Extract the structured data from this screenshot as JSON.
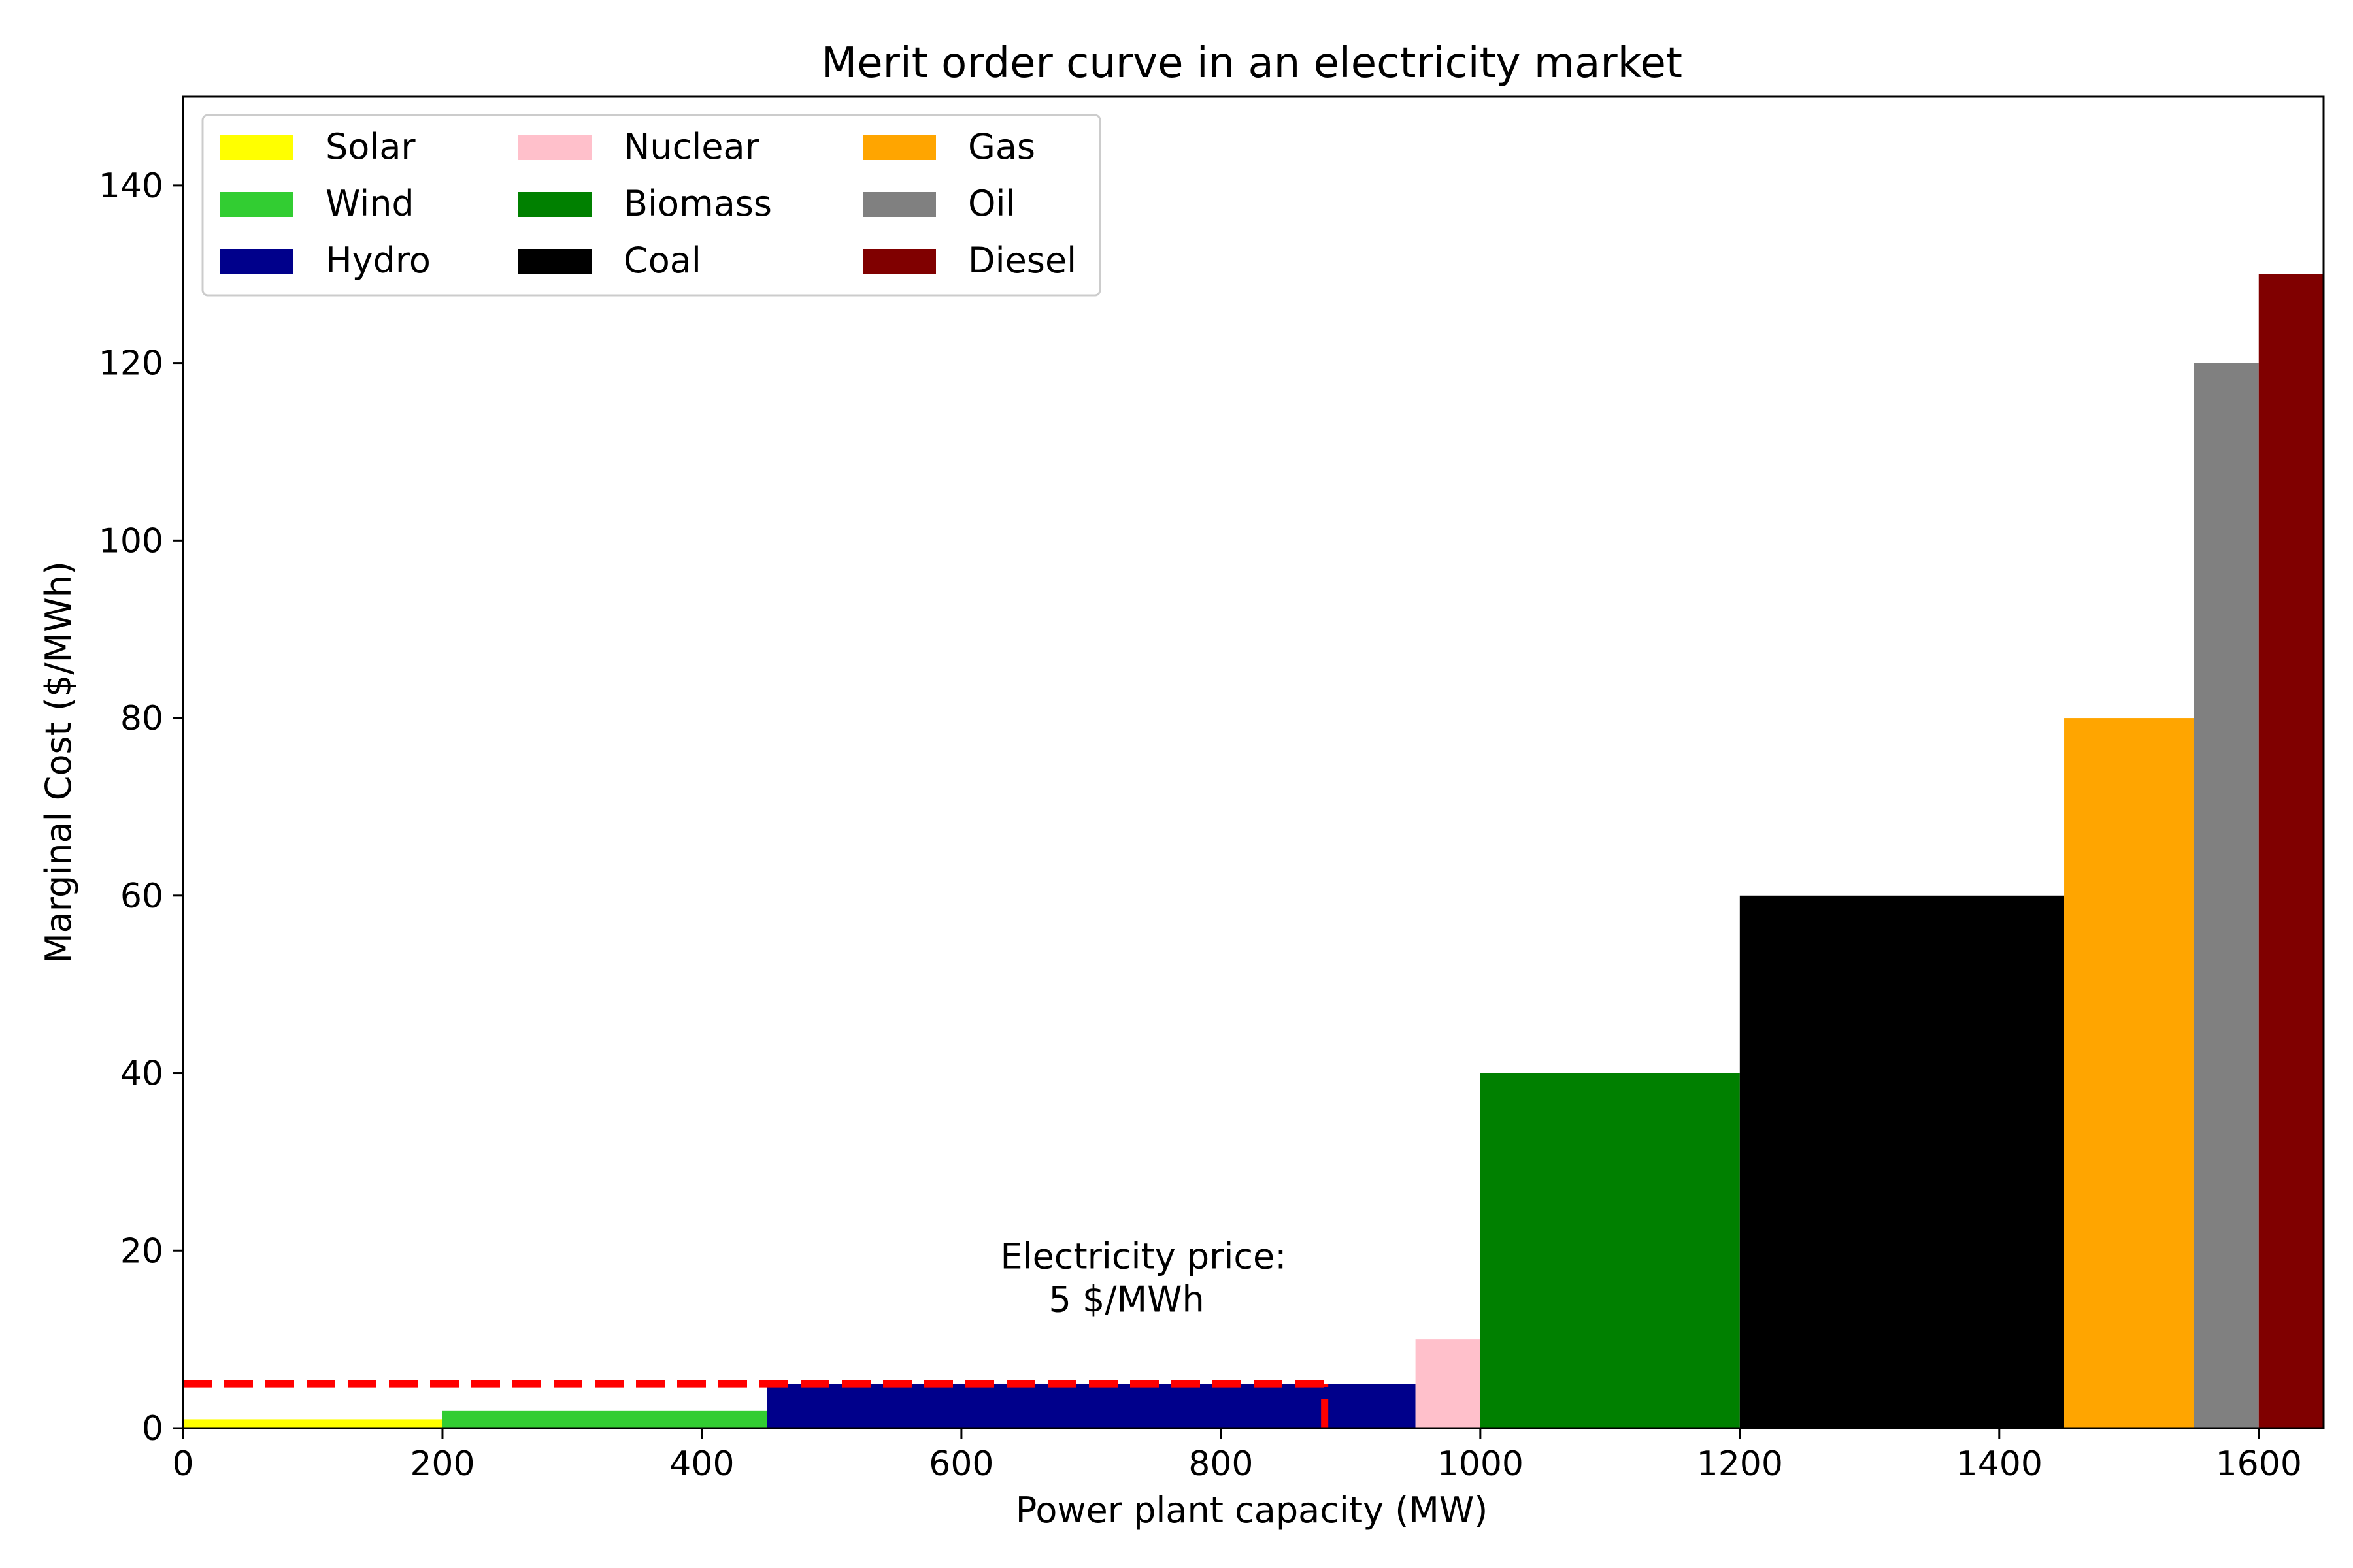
{
  "chart_data": {
    "type": "bar",
    "title": "Merit order curve in an electricity market",
    "xlabel": "Power plant capacity (MW)",
    "ylabel": "Marginal Cost ($/MWh)",
    "xlim": [
      0,
      1650
    ],
    "ylim": [
      0,
      150
    ],
    "xticks": [
      0,
      200,
      400,
      600,
      800,
      1000,
      1200,
      1400,
      1600
    ],
    "yticks": [
      0,
      20,
      40,
      60,
      80,
      100,
      120,
      140
    ],
    "grid": false,
    "legend_placement": "upper-left",
    "legend_columns": 3,
    "series": [
      {
        "name": "Solar",
        "capacity": 200,
        "cost": 1,
        "color": "#ffff00"
      },
      {
        "name": "Wind",
        "capacity": 250,
        "cost": 2,
        "color": "#32cd32"
      },
      {
        "name": "Hydro",
        "capacity": 500,
        "cost": 5,
        "color": "#00008b"
      },
      {
        "name": "Nuclear",
        "capacity": 50,
        "cost": 10,
        "color": "#ffc0cb"
      },
      {
        "name": "Biomass",
        "capacity": 200,
        "cost": 40,
        "color": "#008000"
      },
      {
        "name": "Coal",
        "capacity": 250,
        "cost": 60,
        "color": "#000000"
      },
      {
        "name": "Gas",
        "capacity": 100,
        "cost": 80,
        "color": "#ffa500"
      },
      {
        "name": "Oil",
        "capacity": 50,
        "cost": 120,
        "color": "#808080"
      },
      {
        "name": "Diesel",
        "capacity": 50,
        "cost": 130,
        "color": "#800000"
      }
    ],
    "demand": 880,
    "price": 5,
    "price_line_color": "#ff0000",
    "annotation": {
      "line1": "Electricity price:",
      "line2": "5 $/MWh",
      "x": 630,
      "y": 18
    }
  }
}
